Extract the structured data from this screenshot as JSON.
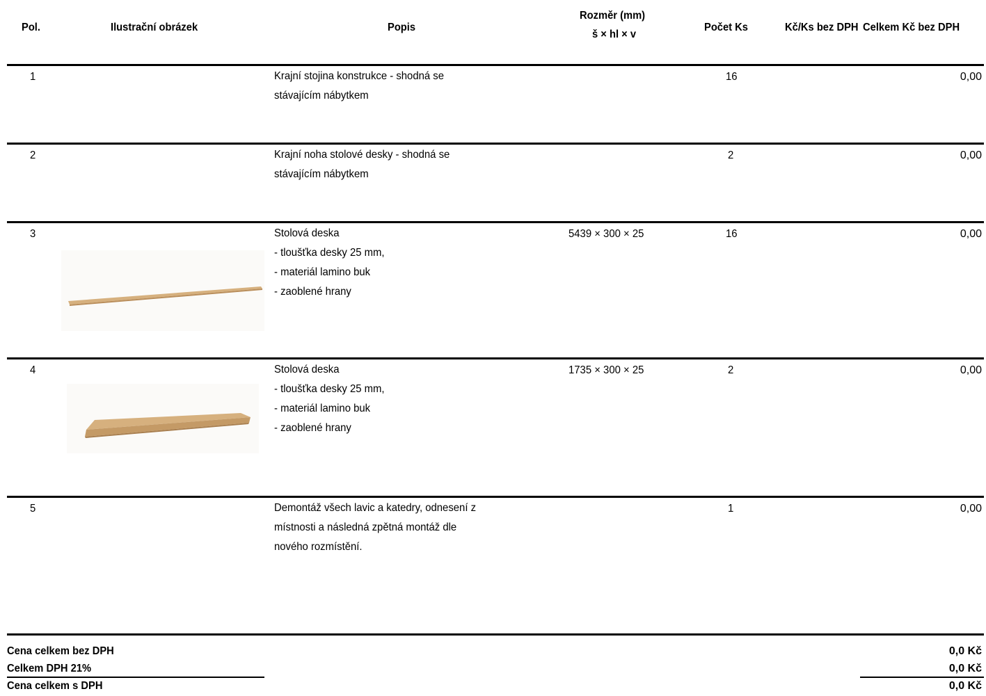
{
  "headers": {
    "pos": "Pol.",
    "image": "Ilustrační obrázek",
    "desc": "Popis",
    "dim_line1": "Rozměr (mm)",
    "dim_line2": "š × hl × v",
    "qty": "Počet Ks",
    "unit_price": "Kč/Ks bez DPH",
    "total": "Celkem Kč bez DPH"
  },
  "rows": [
    {
      "pos": "1",
      "desc": "Krajní stojina konstrukce - shodná se\nstávajícím nábytkem",
      "dims": "",
      "qty": "16",
      "unit": "",
      "total": "0,00",
      "image": ""
    },
    {
      "pos": "2",
      "desc": "Krajní noha stolové desky - shodná se\nstávajícím nábytkem",
      "dims": "",
      "qty": "2",
      "unit": "",
      "total": "0,00",
      "image": ""
    },
    {
      "pos": "3",
      "desc": "Stolová deska\n- tloušťka desky 25 mm,\n- materiál lamino buk\n- zaoblené hrany",
      "dims": "5439 × 300 × 25",
      "qty": "16",
      "unit": "",
      "total": "0,00",
      "image": "long-beech-board"
    },
    {
      "pos": "4",
      "desc": "Stolová deska\n- tloušťka desky 25 mm,\n- materiál lamino buk\n- zaoblené hrany",
      "dims": "1735 × 300 × 25",
      "qty": "2",
      "unit": "",
      "total": "0,00",
      "image": "short-beech-board"
    },
    {
      "pos": "5",
      "desc": "Demontáž všech lavic a katedry, odnesení z\nmístnosti a následná zpětná montáž dle\nnového rozmístění.",
      "dims": "",
      "qty": "1",
      "unit": "",
      "total": "0,00",
      "image": ""
    }
  ],
  "summary": {
    "subtotal_label": "Cena celkem bez DPH",
    "subtotal_value": "0,0 Kč",
    "vat_label": "Celkem DPH 21%",
    "vat_value": "0,0 Kč",
    "total_label": "Cena celkem s DPH",
    "total_value": "0,0 Kč"
  },
  "colors": {
    "rule": "#000000",
    "board_top": "#d6b07e",
    "board_edge": "#b98d5a"
  }
}
